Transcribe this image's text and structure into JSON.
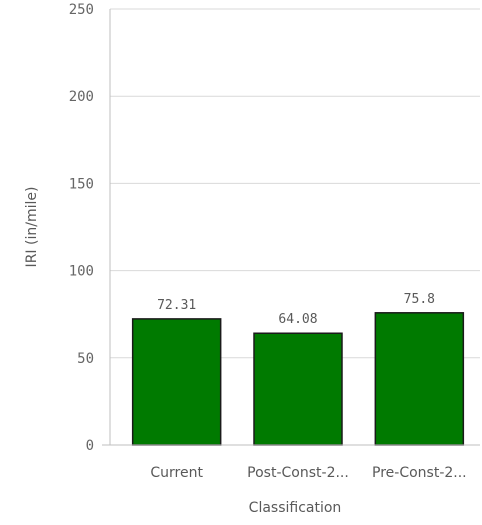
{
  "chart_data": {
    "type": "bar",
    "categories": [
      "Current",
      "Post-Const-2...",
      "Pre-Const-2..."
    ],
    "values": [
      72.31,
      64.08,
      75.8
    ],
    "data_labels": [
      "72.31",
      "64.08",
      "75.8"
    ],
    "title": "",
    "xlabel": "Classification",
    "ylabel": "IRI (in/mile)",
    "ylim": [
      0,
      250
    ],
    "yticks": [
      0,
      50,
      100,
      150,
      200,
      250
    ],
    "ytick_labels": [
      "0",
      "50",
      "100",
      "150",
      "200",
      "250"
    ],
    "grid": true,
    "bar_color": "#007a00",
    "bar_stroke": "#1a1a1a"
  }
}
